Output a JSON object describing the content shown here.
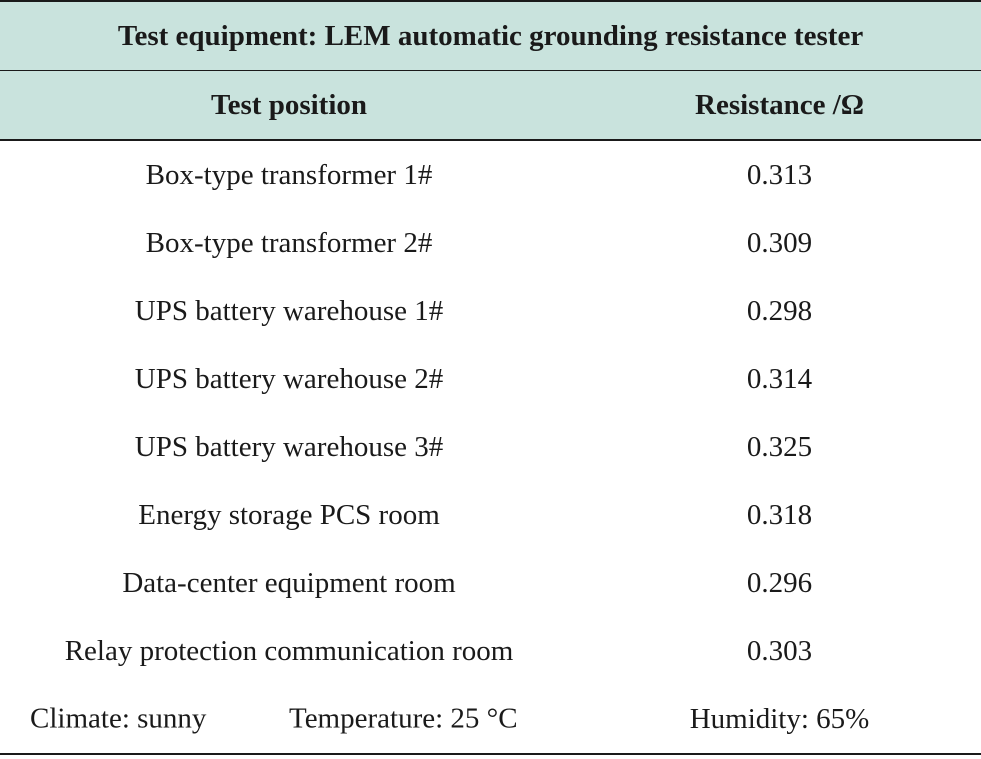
{
  "table": {
    "title": "Test equipment: LEM automatic grounding resistance tester",
    "headers": [
      "Test position",
      "Resistance /Ω"
    ],
    "rows": [
      {
        "position": "Box-type transformer 1#",
        "resistance": "0.313"
      },
      {
        "position": "Box-type transformer 2#",
        "resistance": "0.309"
      },
      {
        "position": "UPS battery warehouse 1#",
        "resistance": "0.298"
      },
      {
        "position": "UPS battery warehouse 2#",
        "resistance": "0.314"
      },
      {
        "position": "UPS battery warehouse 3#",
        "resistance": "0.325"
      },
      {
        "position": "Energy storage PCS room",
        "resistance": "0.318"
      },
      {
        "position": "Data-center equipment room",
        "resistance": "0.296"
      },
      {
        "position": "Relay protection communication room",
        "resistance": "0.303"
      }
    ],
    "footer": {
      "climate": "Climate: sunny",
      "temperature": "Temperature: 25 °C",
      "humidity": "Humidity: 65%"
    }
  },
  "colors": {
    "header_bg": "#c9e3dd",
    "rule": "#1a1a1a"
  }
}
